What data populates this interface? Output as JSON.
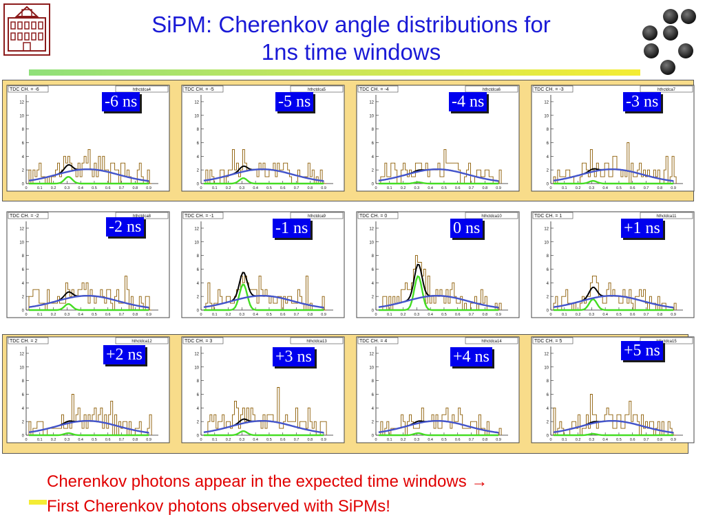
{
  "title": {
    "line1": "SiPM: Cherenkov angle distributions for",
    "line2": "1ns time windows"
  },
  "logos": {
    "left": "university-building-logo",
    "right": "black-dots-logo"
  },
  "colors": {
    "title": "#1a1ad6",
    "label_bg": "#0000ee",
    "band": "#f8dc8a",
    "caption": "#e00000",
    "histogram": "#8b5a00",
    "fit_signal": "#44dd22",
    "fit_background": "#4455cc",
    "fit_total": "#000000"
  },
  "panels": [
    {
      "header": "TDC CH. = -6",
      "hist": "hthctdca4",
      "label": "-6 ns",
      "peak": 1.0,
      "gauss": ""
    },
    {
      "header": "TDC CH. = -5",
      "hist": "hthctdca5",
      "label": "-5 ns",
      "peak": 0.8,
      "gauss": ""
    },
    {
      "header": "TDC CH. = -4",
      "hist": "hthctdca6",
      "label": "-4 ns",
      "peak": 0.2,
      "gauss": ""
    },
    {
      "header": "TDC CH. = -3",
      "hist": "hthctdca7",
      "label": "-3 ns",
      "peak": 0.4,
      "gauss": ""
    },
    {
      "header": "TDC CH. = -2",
      "hist": "hthctdca8",
      "label": "-2 ns",
      "peak": 0.9,
      "gauss": ""
    },
    {
      "header": "TDC CH. = -1",
      "hist": "hthctdca9",
      "label": "-1 ns",
      "peak": 3.8,
      "gauss": ""
    },
    {
      "header": "TDC CH. = 0",
      "hist": "hthctdca10",
      "label": "0 ns",
      "peak": 5.0,
      "gauss": ""
    },
    {
      "header": "TDC CH. = 1",
      "hist": "hthctdca11",
      "label": "+1 ns",
      "peak": 1.6,
      "gauss": ""
    },
    {
      "header": "TDC CH. = 2",
      "hist": "hthctdca12",
      "label": "+2 ns",
      "peak": 0.3,
      "gauss": "Gaus"
    },
    {
      "header": "TDC CH. = 3",
      "hist": "hthctdca13",
      "label": "+3 ns",
      "peak": 0.6,
      "gauss": ""
    },
    {
      "header": "TDC CH. = 4",
      "hist": "hthctdca14",
      "label": "+4 ns",
      "peak": 0.3,
      "gauss": ""
    },
    {
      "header": "TDC CH. = 5",
      "hist": "hthctdca15",
      "label": "+5 ns",
      "peak": 0.2,
      "gauss": "Gaus"
    }
  ],
  "axis": {
    "x_ticks": [
      "0",
      "0.1",
      "0.2",
      "0.3",
      "0.4",
      "0.5",
      "0.6",
      "0.7",
      "0.8",
      "0.9"
    ],
    "y_ticks": [
      "0",
      "2",
      "4",
      "6",
      "8",
      "10",
      "12"
    ],
    "xlim": [
      0,
      0.95
    ],
    "ylim": [
      0,
      13
    ]
  },
  "caption": {
    "line1": "Cherenkov photons  appear in the expected time windows →",
    "line2": "First Cherenkov photons observed with SiPMs!"
  }
}
